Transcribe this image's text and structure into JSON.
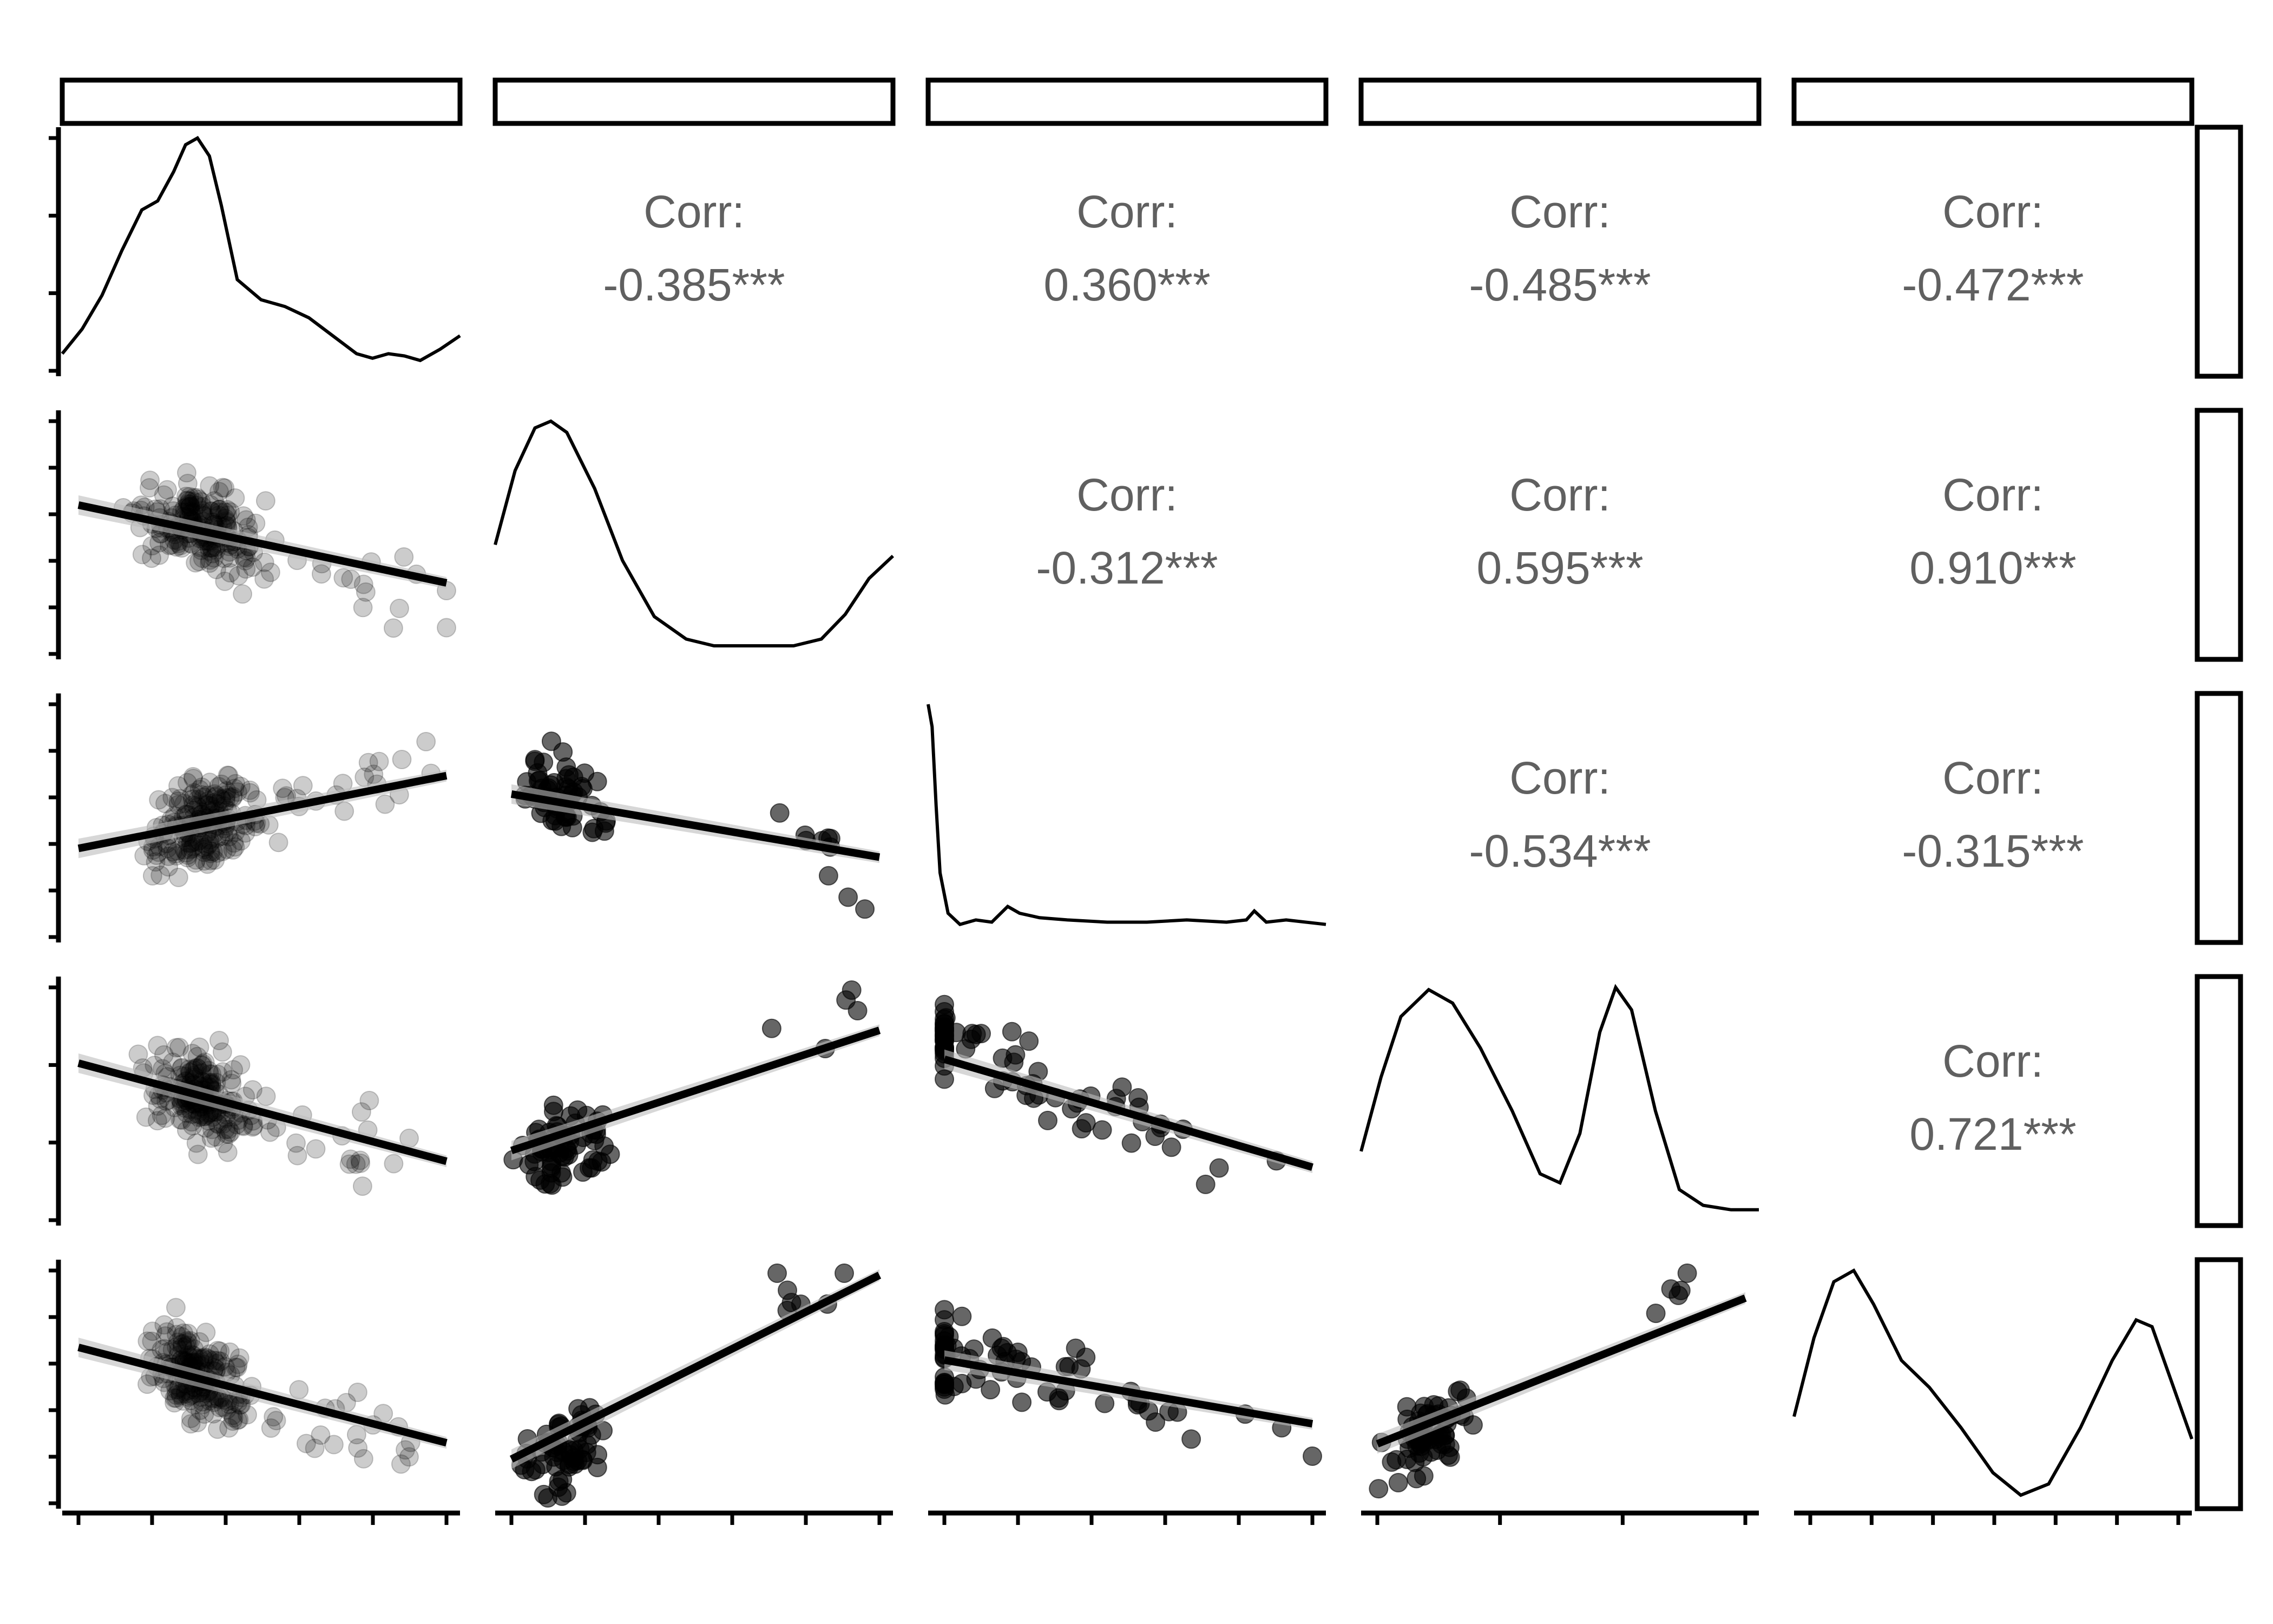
{
  "chart_data": {
    "type": "scatter-matrix",
    "n_variables": 5,
    "strip_labels": [
      "",
      "",
      "",
      "",
      ""
    ],
    "corr_label": "Corr:",
    "correlations": [
      {
        "row": 0,
        "col": 1,
        "value": "-0.385***"
      },
      {
        "row": 0,
        "col": 2,
        "value": "0.360***"
      },
      {
        "row": 0,
        "col": 3,
        "value": "-0.485***"
      },
      {
        "row": 0,
        "col": 4,
        "value": "-0.472***"
      },
      {
        "row": 1,
        "col": 2,
        "value": "-0.312***"
      },
      {
        "row": 1,
        "col": 3,
        "value": "0.595***"
      },
      {
        "row": 1,
        "col": 4,
        "value": "0.910***"
      },
      {
        "row": 2,
        "col": 3,
        "value": "-0.534***"
      },
      {
        "row": 2,
        "col": 4,
        "value": "-0.315***"
      },
      {
        "row": 3,
        "col": 4,
        "value": "0.721***"
      }
    ],
    "densities": [
      [
        [
          0,
          0.04
        ],
        [
          0.05,
          0.15
        ],
        [
          0.1,
          0.3
        ],
        [
          0.15,
          0.5
        ],
        [
          0.2,
          0.68
        ],
        [
          0.24,
          0.72
        ],
        [
          0.28,
          0.85
        ],
        [
          0.31,
          0.97
        ],
        [
          0.34,
          1.0
        ],
        [
          0.37,
          0.92
        ],
        [
          0.4,
          0.7
        ],
        [
          0.44,
          0.37
        ],
        [
          0.5,
          0.28
        ],
        [
          0.56,
          0.25
        ],
        [
          0.62,
          0.2
        ],
        [
          0.68,
          0.12
        ],
        [
          0.74,
          0.04
        ],
        [
          0.78,
          0.02
        ],
        [
          0.82,
          0.04
        ],
        [
          0.86,
          0.03
        ],
        [
          0.9,
          0.01
        ],
        [
          0.95,
          0.06
        ],
        [
          1.0,
          0.12
        ]
      ],
      [
        [
          0,
          0.45
        ],
        [
          0.05,
          0.78
        ],
        [
          0.1,
          0.97
        ],
        [
          0.14,
          1.0
        ],
        [
          0.18,
          0.95
        ],
        [
          0.25,
          0.7
        ],
        [
          0.32,
          0.38
        ],
        [
          0.4,
          0.13
        ],
        [
          0.48,
          0.03
        ],
        [
          0.55,
          0.0
        ],
        [
          0.65,
          0.0
        ],
        [
          0.75,
          0.0
        ],
        [
          0.82,
          0.03
        ],
        [
          0.88,
          0.14
        ],
        [
          0.94,
          0.3
        ],
        [
          1.0,
          0.4
        ]
      ],
      [
        [
          0,
          1.0
        ],
        [
          0.01,
          0.9
        ],
        [
          0.02,
          0.55
        ],
        [
          0.03,
          0.25
        ],
        [
          0.05,
          0.07
        ],
        [
          0.08,
          0.02
        ],
        [
          0.12,
          0.04
        ],
        [
          0.16,
          0.03
        ],
        [
          0.2,
          0.1
        ],
        [
          0.23,
          0.07
        ],
        [
          0.28,
          0.05
        ],
        [
          0.35,
          0.04
        ],
        [
          0.45,
          0.03
        ],
        [
          0.55,
          0.03
        ],
        [
          0.65,
          0.04
        ],
        [
          0.75,
          0.03
        ],
        [
          0.8,
          0.04
        ],
        [
          0.82,
          0.08
        ],
        [
          0.85,
          0.03
        ],
        [
          0.9,
          0.04
        ],
        [
          1.0,
          0.02
        ]
      ],
      [
        [
          0,
          0.27
        ],
        [
          0.05,
          0.6
        ],
        [
          0.1,
          0.87
        ],
        [
          0.17,
          0.99
        ],
        [
          0.23,
          0.93
        ],
        [
          0.3,
          0.73
        ],
        [
          0.38,
          0.45
        ],
        [
          0.45,
          0.17
        ],
        [
          0.5,
          0.13
        ],
        [
          0.55,
          0.35
        ],
        [
          0.6,
          0.8
        ],
        [
          0.64,
          1.0
        ],
        [
          0.68,
          0.9
        ],
        [
          0.74,
          0.45
        ],
        [
          0.8,
          0.1
        ],
        [
          0.86,
          0.03
        ],
        [
          0.93,
          0.01
        ],
        [
          1.0,
          0.01
        ]
      ],
      [
        [
          0,
          0.35
        ],
        [
          0.05,
          0.7
        ],
        [
          0.1,
          0.95
        ],
        [
          0.15,
          1.0
        ],
        [
          0.2,
          0.85
        ],
        [
          0.27,
          0.6
        ],
        [
          0.34,
          0.48
        ],
        [
          0.42,
          0.3
        ],
        [
          0.5,
          0.1
        ],
        [
          0.57,
          0.0
        ],
        [
          0.64,
          0.05
        ],
        [
          0.72,
          0.3
        ],
        [
          0.8,
          0.6
        ],
        [
          0.86,
          0.78
        ],
        [
          0.9,
          0.75
        ],
        [
          0.95,
          0.5
        ],
        [
          1.0,
          0.25
        ]
      ]
    ],
    "axis_note": "Variables and tick labels are not printed in the figure."
  }
}
